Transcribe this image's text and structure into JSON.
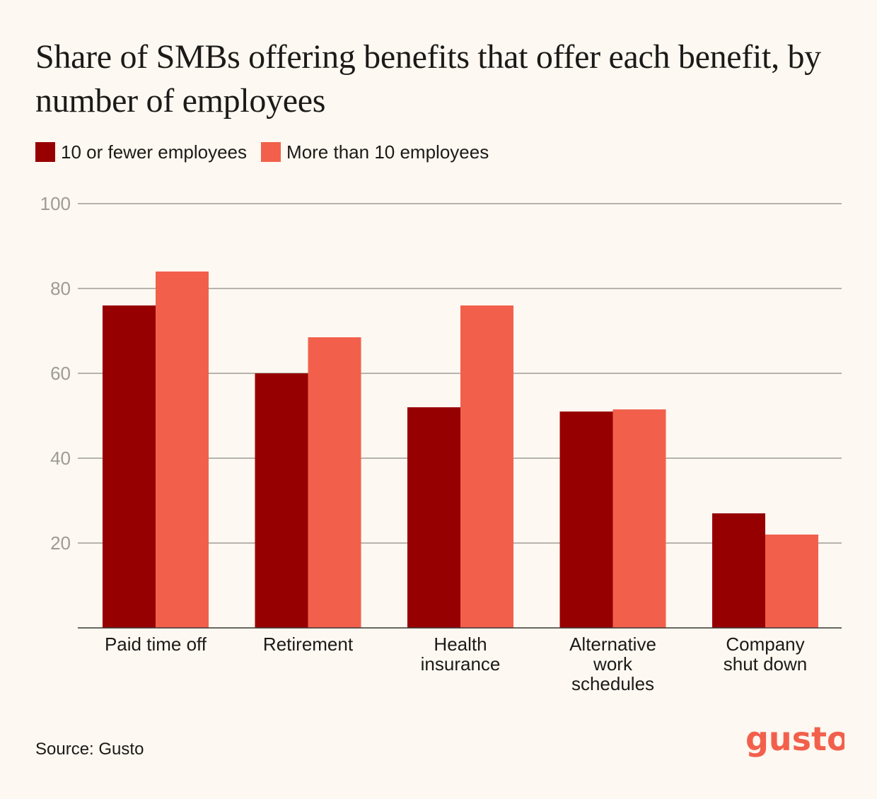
{
  "title": "Share of SMBs offering benefits that offer each benefit, by number of employees",
  "source": "Source: Gusto",
  "logo_text": "gusto",
  "colors": {
    "background": "#fdf8f1",
    "series_dark": "#970000",
    "series_light": "#f2604c",
    "gridline": "#8c8a86",
    "tick_label": "#9e9b97",
    "text": "#1c1a18",
    "logo": "#f2604c"
  },
  "chart_data": {
    "type": "bar",
    "title": "Share of SMBs offering benefits that offer each benefit, by number of employees",
    "categories": [
      [
        "Paid time off"
      ],
      [
        "Retirement"
      ],
      [
        "Health",
        "insurance"
      ],
      [
        "Alternative",
        "work",
        "schedules"
      ],
      [
        "Company",
        "shut down"
      ]
    ],
    "series": [
      {
        "name": "10 or fewer employees",
        "color": "#970000",
        "values": [
          76,
          60,
          52,
          51,
          27
        ]
      },
      {
        "name": "More than 10 employees",
        "color": "#f2604c",
        "values": [
          84,
          68.5,
          76,
          51.5,
          22
        ]
      }
    ],
    "yticks": [
      20,
      40,
      60,
      80,
      100
    ],
    "ylim": [
      0,
      100
    ],
    "xlabel": "",
    "ylabel": "",
    "grid": true,
    "legend_position": "top-left"
  }
}
